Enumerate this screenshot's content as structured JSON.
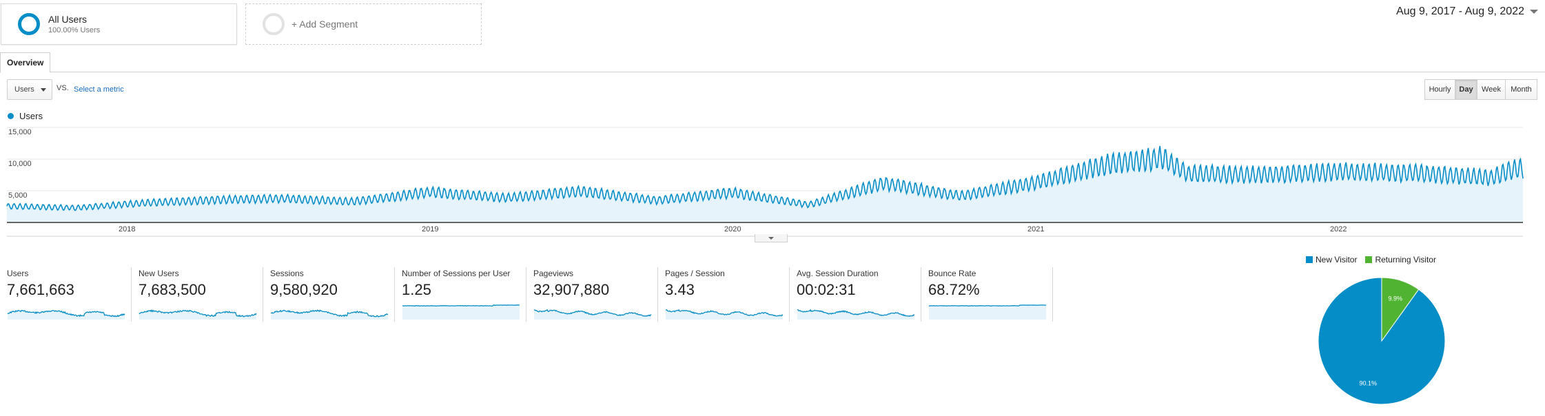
{
  "segments": {
    "all_users": {
      "name": "All Users",
      "sub": "100.00% Users"
    },
    "add_label": "+ Add Segment"
  },
  "date_range": "Aug 9, 2017 - Aug 9, 2022",
  "tabs": {
    "overview": "Overview"
  },
  "metric_picker": {
    "selected": "Users",
    "vs": "VS.",
    "select_metric": "Select a metric"
  },
  "granularity": {
    "hourly": "Hourly",
    "day": "Day",
    "week": "Week",
    "month": "Month",
    "active": "Day"
  },
  "colors": {
    "accent": "#058dc7",
    "returning": "#50b432",
    "fill": "#e6f3fa",
    "grid": "#e5e5e5"
  },
  "chart_data": [
    {
      "type": "area",
      "series": [
        {
          "name": "Users",
          "x": [
            "2017-08",
            "2017-11",
            "2018-01",
            "2018-04",
            "2018-07",
            "2018-10",
            "2019-01",
            "2019-04",
            "2019-07",
            "2019-10",
            "2020-01",
            "2020-04",
            "2020-07",
            "2020-10",
            "2021-01",
            "2021-04",
            "2021-06",
            "2021-07",
            "2021-10",
            "2022-01",
            "2022-04",
            "2022-07",
            "2022-08"
          ],
          "values": [
            2600,
            2300,
            2900,
            3500,
            3800,
            3300,
            4800,
            3900,
            4900,
            3500,
            4700,
            2800,
            6200,
            4200,
            6300,
            9300,
            10200,
            7700,
            7500,
            8000,
            7800,
            7100,
            8500
          ]
        }
      ],
      "y_ticks": [
        "15,000",
        "10,000",
        "5,000"
      ],
      "x_ticks": [
        "2018",
        "2019",
        "2020",
        "2021",
        "2022"
      ],
      "ylim": [
        0,
        15000
      ],
      "legend": "top-left",
      "grid": true
    },
    {
      "type": "pie",
      "categories": [
        "New Visitor",
        "Returning Visitor"
      ],
      "values": [
        90.1,
        9.9
      ],
      "labels": [
        "90.1%",
        "9.9%"
      ],
      "legend": "top"
    }
  ],
  "scorecards": [
    {
      "label": "Users",
      "value": "7,661,663",
      "spark": "wave"
    },
    {
      "label": "New Users",
      "value": "7,683,500",
      "spark": "wave"
    },
    {
      "label": "Sessions",
      "value": "9,580,920",
      "spark": "wave"
    },
    {
      "label": "Number of Sessions per User",
      "value": "1.25",
      "spark": "flat"
    },
    {
      "label": "Pageviews",
      "value": "32,907,880",
      "spark": "noisy"
    },
    {
      "label": "Pages / Session",
      "value": "3.43",
      "spark": "noisy"
    },
    {
      "label": "Avg. Session Duration",
      "value": "00:02:31",
      "spark": "noisy"
    },
    {
      "label": "Bounce Rate",
      "value": "68.72%",
      "spark": "flat"
    }
  ]
}
